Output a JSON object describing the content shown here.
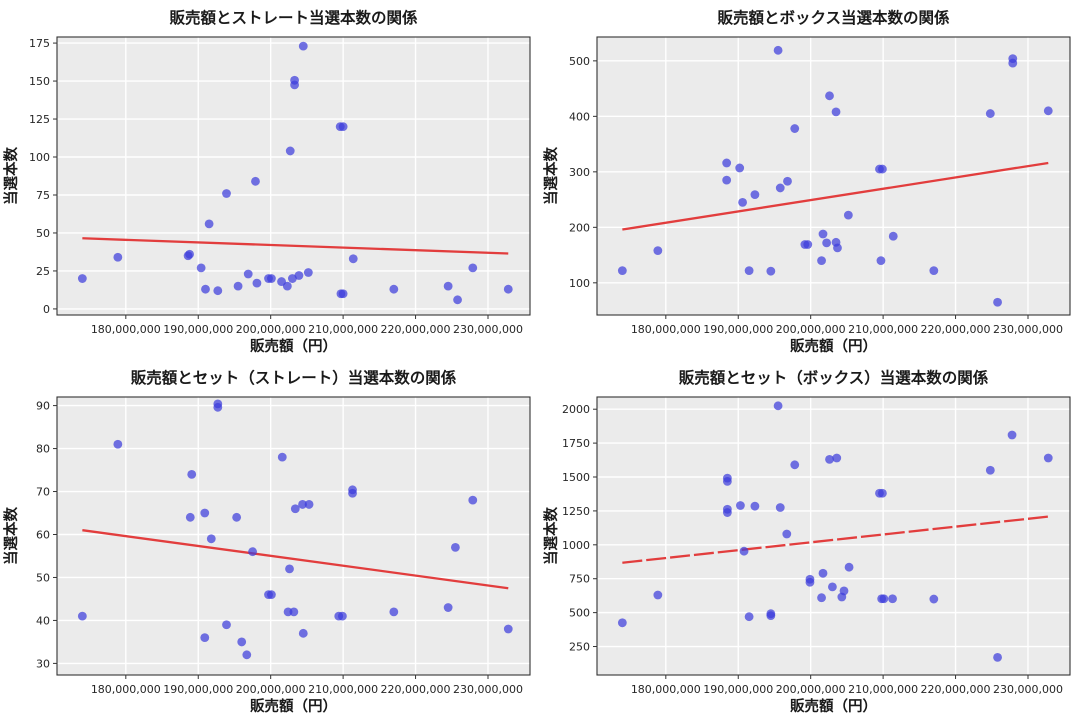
{
  "figure": {
    "xlabel": "販売額（円）",
    "ylabel": "当選本数",
    "x_unit_multiplier": 1000000
  },
  "style": {
    "dot_color": "#3d3ddb",
    "dot_opacity": 0.72,
    "line_color": "#e23434",
    "plot_bg": "#ebebeb",
    "grid_color": "#ffffff",
    "spine_color": "#333333",
    "text_color": "#1a1a1a",
    "tick_color": "#262626"
  },
  "chart_data": [
    {
      "type": "scatter",
      "title": "販売額とストレート当選本数の関係",
      "xlabel": "販売額（円）",
      "ylabel": "当選本数",
      "xlim": [
        170.5,
        235.8
      ],
      "ylim": [
        -4,
        179
      ],
      "xticks": [
        180,
        190,
        200,
        210,
        220,
        230
      ],
      "xtick_labels": [
        "180,000,000",
        "190,000,000",
        "200,000,000",
        "210,000,000",
        "220,000,000",
        "230,000,000"
      ],
      "yticks": [
        0,
        25,
        50,
        75,
        100,
        125,
        150,
        175
      ],
      "grid": true,
      "legend": "none",
      "points": [
        [
          174.0,
          20
        ],
        [
          178.9,
          34
        ],
        [
          188.6,
          35
        ],
        [
          188.8,
          36
        ],
        [
          190.4,
          27
        ],
        [
          191.0,
          13
        ],
        [
          191.5,
          56
        ],
        [
          192.7,
          12
        ],
        [
          193.9,
          76
        ],
        [
          195.5,
          15
        ],
        [
          196.9,
          23
        ],
        [
          197.9,
          84
        ],
        [
          198.1,
          17
        ],
        [
          199.7,
          20
        ],
        [
          200.1,
          20
        ],
        [
          201.5,
          18
        ],
        [
          202.3,
          15
        ],
        [
          202.7,
          104
        ],
        [
          203.0,
          20
        ],
        [
          203.3,
          147.5
        ],
        [
          203.3,
          150.5
        ],
        [
          203.9,
          22
        ],
        [
          204.5,
          173
        ],
        [
          205.2,
          24
        ],
        [
          209.6,
          120
        ],
        [
          210.0,
          120
        ],
        [
          209.7,
          10
        ],
        [
          210.0,
          10
        ],
        [
          211.4,
          33
        ],
        [
          217.0,
          13
        ],
        [
          224.5,
          15
        ],
        [
          225.8,
          6
        ],
        [
          227.9,
          27
        ],
        [
          232.8,
          13
        ]
      ],
      "trend": {
        "x1": 174.0,
        "y1": 46.5,
        "x2": 232.8,
        "y2": 36.5,
        "dashed": false
      }
    },
    {
      "type": "scatter",
      "title": "販売額とボックス当選本数の関係",
      "xlabel": "販売額（円）",
      "ylabel": "当選本数",
      "xlim": [
        170.5,
        235.8
      ],
      "ylim": [
        42,
        543
      ],
      "xticks": [
        180,
        190,
        200,
        210,
        220,
        230
      ],
      "xtick_labels": [
        "180,000,000",
        "190,000,000",
        "200,000,000",
        "210,000,000",
        "220,000,000",
        "230,000,000"
      ],
      "yticks": [
        100,
        200,
        300,
        400,
        500
      ],
      "grid": true,
      "legend": "none",
      "points": [
        [
          174.0,
          122
        ],
        [
          178.9,
          158
        ],
        [
          188.4,
          316
        ],
        [
          188.4,
          285
        ],
        [
          190.2,
          307
        ],
        [
          190.6,
          245
        ],
        [
          191.5,
          122
        ],
        [
          192.3,
          259
        ],
        [
          194.5,
          121
        ],
        [
          195.5,
          519
        ],
        [
          195.8,
          271
        ],
        [
          196.8,
          283
        ],
        [
          197.8,
          378
        ],
        [
          199.2,
          169
        ],
        [
          199.6,
          169
        ],
        [
          201.5,
          140
        ],
        [
          201.7,
          188
        ],
        [
          202.2,
          172
        ],
        [
          202.6,
          437
        ],
        [
          203.5,
          408
        ],
        [
          203.5,
          173
        ],
        [
          203.7,
          163
        ],
        [
          205.2,
          222
        ],
        [
          209.5,
          305
        ],
        [
          209.9,
          305
        ],
        [
          209.7,
          140
        ],
        [
          211.4,
          184
        ],
        [
          217.0,
          122
        ],
        [
          224.8,
          405
        ],
        [
          225.8,
          65
        ],
        [
          227.9,
          496
        ],
        [
          227.9,
          504
        ],
        [
          232.8,
          410
        ]
      ],
      "trend": {
        "x1": 174.0,
        "y1": 196,
        "x2": 232.8,
        "y2": 316,
        "dashed": false
      }
    },
    {
      "type": "scatter",
      "title": "販売額とセット（ストレート）当選本数の関係",
      "xlabel": "販売額（円）",
      "ylabel": "当選本数",
      "xlim": [
        170.5,
        235.8
      ],
      "ylim": [
        27.3,
        92
      ],
      "xticks": [
        180,
        190,
        200,
        210,
        220,
        230
      ],
      "xtick_labels": [
        "180,000,000",
        "190,000,000",
        "200,000,000",
        "210,000,000",
        "220,000,000",
        "230,000,000"
      ],
      "yticks": [
        30,
        40,
        50,
        60,
        70,
        80,
        90
      ],
      "grid": true,
      "legend": "none",
      "points": [
        [
          174.0,
          41
        ],
        [
          178.9,
          81
        ],
        [
          188.9,
          64
        ],
        [
          189.1,
          74
        ],
        [
          190.9,
          65
        ],
        [
          190.9,
          36
        ],
        [
          191.8,
          59
        ],
        [
          192.7,
          89.6
        ],
        [
          192.7,
          90.4
        ],
        [
          193.9,
          39
        ],
        [
          195.3,
          64
        ],
        [
          196.0,
          35
        ],
        [
          196.7,
          32
        ],
        [
          197.5,
          56
        ],
        [
          199.7,
          46
        ],
        [
          200.1,
          46
        ],
        [
          201.6,
          78
        ],
        [
          202.4,
          42
        ],
        [
          202.6,
          52
        ],
        [
          203.2,
          42
        ],
        [
          203.4,
          66
        ],
        [
          204.4,
          67
        ],
        [
          204.5,
          37
        ],
        [
          205.3,
          67
        ],
        [
          209.4,
          41
        ],
        [
          209.9,
          41
        ],
        [
          211.3,
          69.6
        ],
        [
          211.3,
          70.4
        ],
        [
          217.0,
          42
        ],
        [
          224.5,
          43
        ],
        [
          225.5,
          57
        ],
        [
          227.9,
          68
        ],
        [
          232.8,
          38
        ]
      ],
      "trend": {
        "x1": 174.0,
        "y1": 61,
        "x2": 232.8,
        "y2": 47.5,
        "dashed": false
      }
    },
    {
      "type": "scatter",
      "title": "販売額とセット（ボックス）当選本数の関係",
      "xlabel": "販売額（円）",
      "ylabel": "当選本数",
      "xlim": [
        170.5,
        235.8
      ],
      "ylim": [
        40,
        2090
      ],
      "xticks": [
        180,
        190,
        200,
        210,
        220,
        230
      ],
      "xtick_labels": [
        "180,000,000",
        "190,000,000",
        "200,000,000",
        "210,000,000",
        "220,000,000",
        "230,000,000"
      ],
      "yticks": [
        250,
        500,
        750,
        1000,
        1250,
        1500,
        1750,
        2000
      ],
      "grid": true,
      "legend": "none",
      "points": [
        [
          174.0,
          425
        ],
        [
          178.9,
          630
        ],
        [
          188.5,
          1468
        ],
        [
          188.5,
          1492
        ],
        [
          188.5,
          1238
        ],
        [
          188.5,
          1262
        ],
        [
          190.3,
          1290
        ],
        [
          190.8,
          953
        ],
        [
          191.5,
          470
        ],
        [
          192.3,
          1285
        ],
        [
          194.5,
          478
        ],
        [
          194.5,
          492
        ],
        [
          195.5,
          2025
        ],
        [
          195.8,
          1275
        ],
        [
          196.7,
          1080
        ],
        [
          197.8,
          1590
        ],
        [
          199.9,
          724
        ],
        [
          199.9,
          746
        ],
        [
          201.5,
          610
        ],
        [
          201.7,
          790
        ],
        [
          202.6,
          1630
        ],
        [
          203.0,
          690
        ],
        [
          203.6,
          1640
        ],
        [
          204.3,
          615
        ],
        [
          204.6,
          660
        ],
        [
          205.3,
          835
        ],
        [
          209.5,
          1380
        ],
        [
          209.9,
          1380
        ],
        [
          209.8,
          602
        ],
        [
          210.1,
          602
        ],
        [
          211.3,
          602
        ],
        [
          217.0,
          600
        ],
        [
          224.8,
          1550
        ],
        [
          225.8,
          170
        ],
        [
          227.8,
          1810
        ],
        [
          232.8,
          1640
        ]
      ],
      "trend": {
        "x1": 174.0,
        "y1": 868,
        "x2": 232.8,
        "y2": 1208,
        "dashed": true
      }
    }
  ]
}
